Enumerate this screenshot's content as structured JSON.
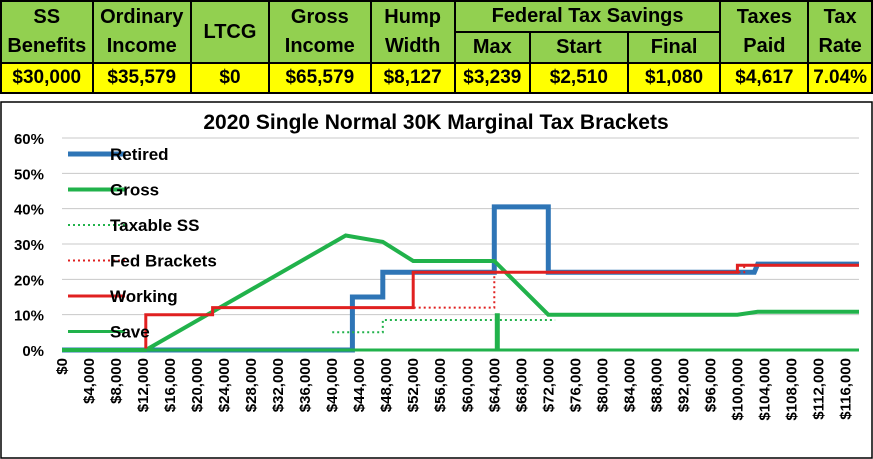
{
  "summary": {
    "headers": {
      "ss": [
        "SS",
        "Benefits"
      ],
      "ordinary": [
        "Ordinary",
        "Income"
      ],
      "ltcg": "LTCG",
      "gross": [
        "Gross",
        "Income"
      ],
      "hump": [
        "Hump",
        "Width"
      ],
      "federal": "Federal Tax Savings",
      "max": "Max",
      "start": "Start",
      "final": "Final",
      "taxes": [
        "Taxes",
        "Paid"
      ],
      "rate": [
        "Tax",
        "Rate"
      ]
    },
    "values": {
      "ss": "$30,000",
      "ordinary": "$35,579",
      "ltcg": "$0",
      "gross": "$65,579",
      "hump": "$8,127",
      "max": "$3,239",
      "start": "$2,510",
      "final": "$1,080",
      "taxes": "$4,617",
      "rate": "7.04%"
    }
  },
  "chart_data": {
    "type": "line",
    "title": "2020 Single Normal 30K Marginal Tax Brackets",
    "xlim": [
      0,
      118000
    ],
    "ylim": [
      0,
      60
    ],
    "x_ticks": [
      0,
      4000,
      8000,
      12000,
      16000,
      20000,
      24000,
      28000,
      32000,
      36000,
      40000,
      44000,
      48000,
      52000,
      56000,
      60000,
      64000,
      68000,
      72000,
      76000,
      80000,
      84000,
      88000,
      92000,
      96000,
      100000,
      104000,
      108000,
      112000,
      116000
    ],
    "x_tick_labels": [
      "$0",
      "$4,000",
      "$8,000",
      "$12,000",
      "$16,000",
      "$20,000",
      "$24,000",
      "$28,000",
      "$32,000",
      "$36,000",
      "$40,000",
      "$44,000",
      "$48,000",
      "$52,000",
      "$56,000",
      "$60,000",
      "$64,000",
      "$68,000",
      "$72,000",
      "$76,000",
      "$80,000",
      "$84,000",
      "$88,000",
      "$92,000",
      "$96,000",
      "$100,000",
      "$104,000",
      "$108,000",
      "$112,000",
      "$116,000"
    ],
    "y_ticks": [
      0,
      10,
      20,
      30,
      40,
      50,
      60
    ],
    "y_tick_labels": [
      "0%",
      "10%",
      "20%",
      "30%",
      "40%",
      "50%",
      "60%"
    ],
    "grid": "horizontal",
    "legend_position": "top-left",
    "series": [
      {
        "name": "Retired",
        "color": "#2e75b6",
        "width": 5,
        "dash": "solid",
        "x": [
          0,
          43000,
          43000,
          47500,
          47500,
          64000,
          64000,
          72000,
          72000,
          102500,
          103000,
          118000
        ],
        "y": [
          0,
          0,
          15,
          15,
          22,
          22,
          40.5,
          40.5,
          22,
          22,
          24.3,
          24.3
        ]
      },
      {
        "name": "Gross",
        "color": "#21b24b",
        "width": 4,
        "dash": "solid",
        "x": [
          0,
          12400,
          42000,
          47500,
          52000,
          64000,
          72000,
          100000,
          103000,
          118000
        ],
        "y": [
          0,
          0,
          32.4,
          30.6,
          25.2,
          25.2,
          10,
          10,
          10.8,
          10.8
        ]
      },
      {
        "name": "Taxable SS",
        "color": "#21b24b",
        "width": 2,
        "dash": "dotted",
        "x": [
          40000,
          47500,
          47500,
          73000
        ],
        "y": [
          5,
          5,
          8.5,
          8.5
        ]
      },
      {
        "name": "Fed Brackets",
        "color": "#e02020",
        "width": 2,
        "dash": "dotted",
        "x": [
          12400,
          22300,
          22300,
          52000,
          52000,
          64000,
          64000,
          101000,
          101000,
          118000
        ],
        "y": [
          10,
          10,
          12,
          12,
          12,
          12,
          22,
          22,
          24,
          24
        ]
      },
      {
        "name": "Working",
        "color": "#e02020",
        "width": 3,
        "dash": "solid",
        "x": [
          12400,
          12400,
          22300,
          22300,
          52000,
          52000,
          100000,
          100000,
          118000
        ],
        "y": [
          0,
          10,
          10,
          12,
          12,
          22,
          22,
          24,
          24
        ]
      },
      {
        "name": "Save",
        "color": "#21b24b",
        "width": 3,
        "dash": "solid",
        "x": [
          0,
          64300,
          64300,
          64600,
          64600,
          118000
        ],
        "y": [
          0,
          0,
          10,
          10,
          0,
          0
        ]
      }
    ]
  }
}
